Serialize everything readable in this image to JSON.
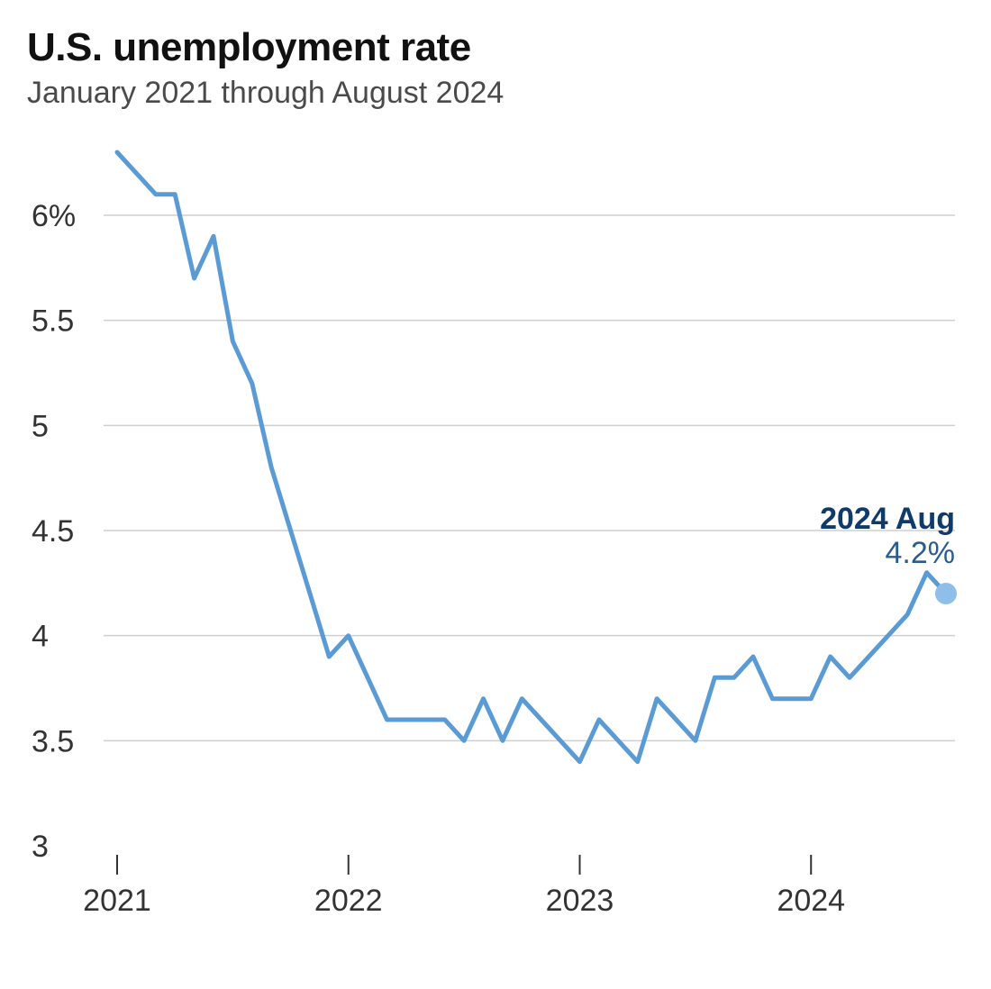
{
  "title": "U.S. unemployment rate",
  "subtitle": "January 2021 through August 2024",
  "chart": {
    "type": "line",
    "background_color": "#ffffff",
    "grid_color": "#cfcfcf",
    "axis_text_color": "#333333",
    "line_color": "#5b9bd5",
    "line_width": 5,
    "endpoint_marker_color": "#8fbfe8",
    "endpoint_marker_radius": 12,
    "callout": {
      "date_label": "2024 Aug",
      "value_label": "4.2%",
      "date_color": "#103a6a",
      "value_color": "#2a5c8f"
    },
    "y": {
      "min": 3.0,
      "max": 6.3,
      "ticks": [
        {
          "v": 6.0,
          "label": "6%"
        },
        {
          "v": 5.5,
          "label": "5.5"
        },
        {
          "v": 5.0,
          "label": "5"
        },
        {
          "v": 4.5,
          "label": "4.5"
        },
        {
          "v": 4.0,
          "label": "4"
        },
        {
          "v": 3.5,
          "label": "3.5"
        },
        {
          "v": 3.0,
          "label": "3"
        }
      ]
    },
    "x": {
      "min": 0,
      "max": 43,
      "ticks": [
        {
          "idx": 0,
          "label": "2021"
        },
        {
          "idx": 12,
          "label": "2022"
        },
        {
          "idx": 24,
          "label": "2023"
        },
        {
          "idx": 36,
          "label": "2024"
        }
      ]
    },
    "series": {
      "name": "Unemployment rate",
      "values": [
        6.3,
        6.2,
        6.1,
        6.1,
        5.7,
        5.9,
        5.4,
        5.2,
        4.8,
        4.5,
        4.2,
        3.9,
        4.0,
        3.8,
        3.6,
        3.6,
        3.6,
        3.6,
        3.5,
        3.7,
        3.5,
        3.7,
        3.6,
        3.5,
        3.4,
        3.6,
        3.5,
        3.4,
        3.7,
        3.6,
        3.5,
        3.8,
        3.8,
        3.9,
        3.7,
        3.7,
        3.7,
        3.9,
        3.8,
        3.9,
        4.0,
        4.1,
        4.3,
        4.2
      ]
    }
  }
}
